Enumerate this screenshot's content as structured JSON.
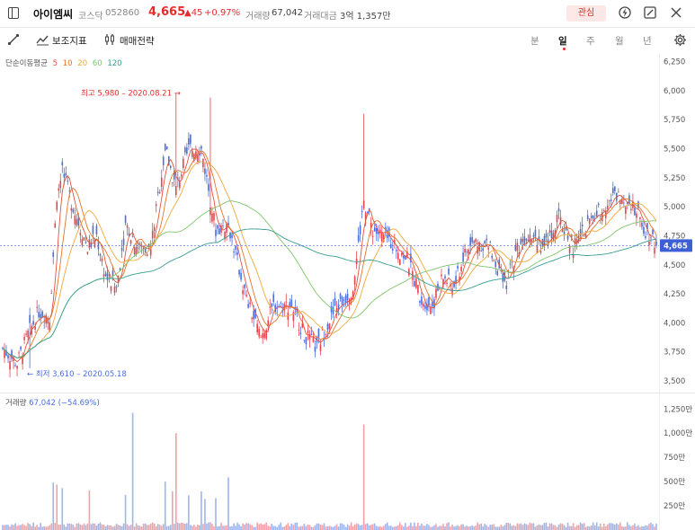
{
  "header": {
    "name": "아이엠씨",
    "market": "코스닥",
    "code": "052860",
    "price": "4,665",
    "change": "▲45",
    "change_pct": "+0.97%",
    "separator": "·",
    "volume_label": "거래량",
    "volume": "67,042",
    "amount_label": "거래대금",
    "amount": "3억 1,357만",
    "favorite_label": "관심"
  },
  "toolbar": {
    "indicator_label": "보조지표",
    "strategy_label": "매매전략",
    "periods": [
      "분",
      "일",
      "주",
      "월",
      "년"
    ],
    "selected_period": "일"
  },
  "ma_legend": {
    "label": "단순이동평균",
    "items": [
      {
        "period": "5",
        "color": "#e0523e"
      },
      {
        "period": "10",
        "color": "#e5742a"
      },
      {
        "period": "20",
        "color": "#f0a83c"
      },
      {
        "period": "60",
        "color": "#7fc46b"
      },
      {
        "period": "120",
        "color": "#3a9d93"
      }
    ]
  },
  "chart_data": {
    "type": "candlestick",
    "y_ticks": [
      "6,250",
      "6,000",
      "5,750",
      "5,500",
      "5,250",
      "5,000",
      "4,750",
      "4,500",
      "4,250",
      "4,000",
      "3,750",
      "3,500"
    ],
    "ylim": [
      3400,
      6300
    ],
    "current_price_label": "4,665",
    "current_price": 4665,
    "annotations": {
      "high": "최고 5,980 – 2020.08.21 →",
      "high_value": 5980,
      "low": "← 최저 3,610 – 2020.05.18",
      "low_value": 3610
    },
    "volume_label": "거래량",
    "volume_value": "67,042 (−54.69%)",
    "volume_ticks": [
      "1,250만",
      "1,000만",
      "750만",
      "500만",
      "250만"
    ],
    "volume_ylim": [
      0,
      1300
    ],
    "up_color": "#e8444e",
    "down_color": "#4a6fdc"
  }
}
